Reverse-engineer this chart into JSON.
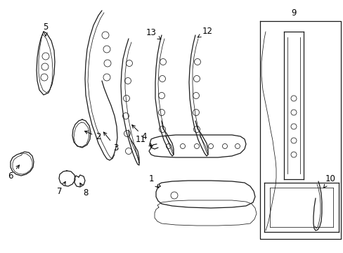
{
  "bg_color": "#ffffff",
  "line_color": "#1a1a1a",
  "fig_width": 4.89,
  "fig_height": 3.6,
  "dpi": 100,
  "lw": 0.9,
  "lw_thin": 0.55,
  "label_fs": 8.5
}
